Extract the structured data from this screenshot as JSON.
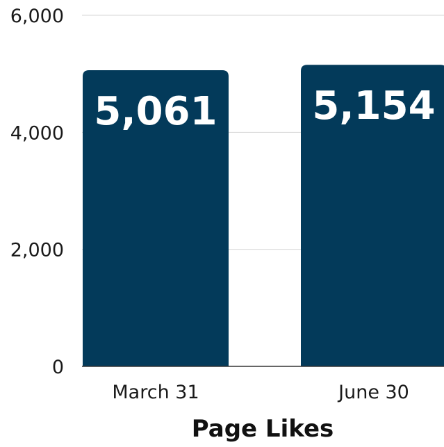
{
  "chart_data": {
    "type": "bar",
    "categories": [
      "March 31",
      "June 30"
    ],
    "values": [
      5061,
      5154
    ],
    "value_labels": [
      "5,061",
      "5,154"
    ],
    "title": "",
    "xlabel": "Page Likes",
    "ylabel": "",
    "ylim": [
      0,
      6000
    ],
    "yticks": [
      0,
      2000,
      4000,
      6000
    ],
    "ytick_labels": [
      "0",
      "2,000",
      "4,000",
      "6,000"
    ],
    "grid": true,
    "legend": "none",
    "colors": {
      "bar": "#033a5a",
      "grid": "#d6d6d6",
      "axis": "#333333",
      "data_label": "#ffffff"
    }
  }
}
